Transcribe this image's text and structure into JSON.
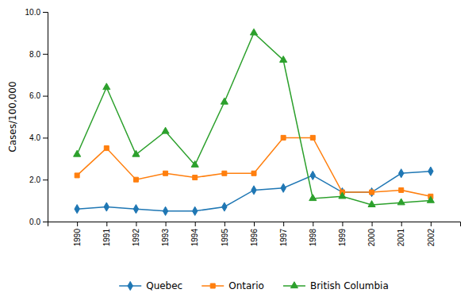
{
  "chart_data": {
    "type": "line",
    "x": [
      1990,
      1991,
      1992,
      1993,
      1994,
      1995,
      1996,
      1997,
      1998,
      1999,
      2000,
      2001,
      2002
    ],
    "series": [
      {
        "name": "Quebec",
        "marker": "diamond",
        "values": [
          0.6,
          0.7,
          0.6,
          0.5,
          0.5,
          0.7,
          1.5,
          1.6,
          2.2,
          1.4,
          1.4,
          2.3,
          2.4
        ]
      },
      {
        "name": "Ontario",
        "marker": "square",
        "values": [
          2.2,
          3.5,
          2.0,
          2.3,
          2.1,
          2.3,
          2.3,
          4.0,
          4.0,
          1.4,
          1.4,
          1.5,
          1.2
        ]
      },
      {
        "name": "British Columbia",
        "marker": "triangle",
        "values": [
          3.2,
          6.4,
          3.2,
          4.3,
          2.7,
          5.7,
          9.0,
          7.7,
          1.1,
          1.2,
          0.8,
          0.9,
          1.0
        ]
      }
    ],
    "ylabel": "Cases/100,000",
    "xlim": [
      1989,
      2003
    ],
    "xticks": [
      1990,
      1991,
      1992,
      1993,
      1994,
      1995,
      1996,
      1997,
      1998,
      1999,
      2000,
      2001,
      2002
    ],
    "ylim": [
      0.0,
      10.0
    ],
    "yticks": [
      {
        "value": 0.0,
        "label": "0.0"
      },
      {
        "value": 2.0,
        "label": "2.0"
      },
      {
        "value": 4.0,
        "label": "4.0"
      },
      {
        "value": 6.0,
        "label": "6.0"
      },
      {
        "value": 8.0,
        "label": "8.0"
      },
      {
        "value": 10.0,
        "label": "10.0"
      }
    ],
    "grid": false,
    "legend": "bottom"
  }
}
